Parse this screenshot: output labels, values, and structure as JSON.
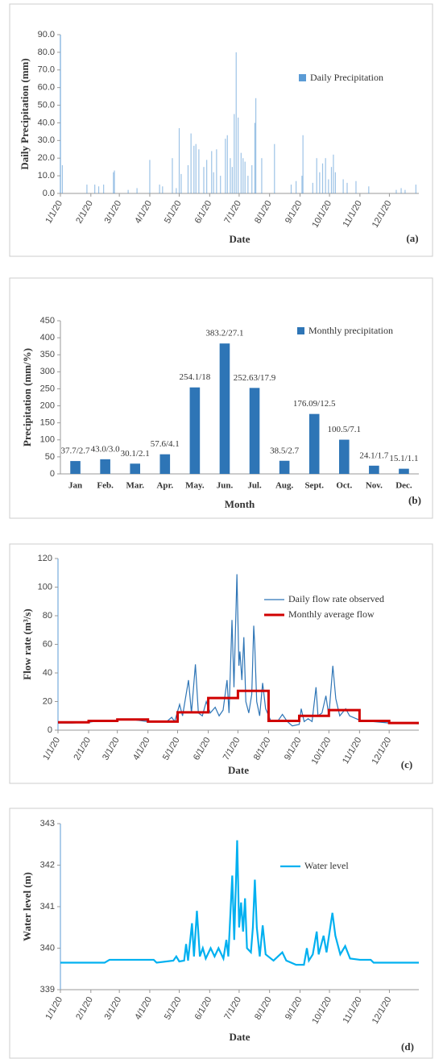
{
  "chart_data": [
    {
      "type": "bar",
      "ylabel": "Daily Precipitation (mm)",
      "xlabel": "Date",
      "panel_label": "(a)",
      "xlim": [
        "1/1/20",
        "12/31/20"
      ],
      "xticks": [
        "1/1/20",
        "2/1/20",
        "3/1/20",
        "4/1/20",
        "5/1/20",
        "6/1/20",
        "7/1/20",
        "8/1/20",
        "9/1/20",
        "10/1/20",
        "11/1/20",
        "12/1/20"
      ],
      "ylim": [
        0,
        90
      ],
      "yticks": [
        {
          "value": 0,
          "label": "0.0"
        },
        {
          "value": 10,
          "label": "10.0"
        },
        {
          "value": 20,
          "label": "20.0"
        },
        {
          "value": 30,
          "label": "30.0"
        },
        {
          "value": 40,
          "label": "40.0"
        },
        {
          "value": 50,
          "label": "50.0"
        },
        {
          "value": 60,
          "label": "60.0"
        },
        {
          "value": 70,
          "label": "70.0"
        },
        {
          "value": 80,
          "label": "80.0"
        },
        {
          "value": 90,
          "label": "90.0"
        }
      ],
      "series": [
        {
          "name": "Daily Precipitation",
          "color": "#5b9bd5",
          "x": [
            "1/3/20",
            "1/28/20",
            "2/5/20",
            "2/9/20",
            "2/14/20",
            "2/24/20",
            "2/25/20",
            "3/10/20",
            "3/19/20",
            "4/1/20",
            "4/11/20",
            "4/14/20",
            "4/24/20",
            "4/28/20",
            "5/1/20",
            "5/3/20",
            "5/10/20",
            "5/13/20",
            "5/16/20",
            "5/18/20",
            "5/21/20",
            "5/26/20",
            "5/29/20",
            "6/3/20",
            "6/5/20",
            "6/8/20",
            "6/12/20",
            "6/17/20",
            "6/19/20",
            "6/22/20",
            "6/24/20",
            "6/26/20",
            "6/28/20",
            "6/30/20",
            "7/3/20",
            "7/5/20",
            "7/7/20",
            "7/10/20",
            "7/14/20",
            "7/17/20",
            "7/18/20",
            "7/24/20",
            "8/6/20",
            "8/23/20",
            "8/28/20",
            "9/3/20",
            "9/4/20",
            "9/14/20",
            "9/18/20",
            "9/21/20",
            "9/24/20",
            "9/27/20",
            "9/30/20",
            "10/3/20",
            "10/5/20",
            "10/7/20",
            "10/15/20",
            "10/19/20",
            "10/28/20",
            "11/10/20",
            "12/8/20",
            "12/13/20",
            "12/17/20",
            "12/28/20"
          ],
          "values": [
            16,
            5,
            5,
            4,
            5,
            12,
            13,
            2,
            3,
            19,
            5,
            4,
            20,
            3,
            37,
            11,
            16,
            34,
            27,
            28,
            25,
            15,
            19,
            24,
            12,
            25,
            10,
            31,
            33,
            20,
            15,
            45,
            80,
            43,
            23,
            20,
            18,
            10,
            16,
            40,
            54,
            20,
            28,
            5,
            7,
            10,
            33,
            6,
            20,
            12,
            17,
            20,
            8,
            15,
            22,
            12,
            8,
            6,
            7,
            4,
            2,
            3,
            2,
            5
          ]
        }
      ]
    },
    {
      "type": "bar",
      "ylabel": "Precipitation (mm/%)",
      "xlabel": "Month",
      "panel_label": "(b)",
      "categories": [
        "Jan",
        "Feb.",
        "Mar.",
        "Apr.",
        "May.",
        "Jun.",
        "Jul.",
        "Aug.",
        "Sept.",
        "Oct.",
        "Nov.",
        "Dec."
      ],
      "ylim": [
        0,
        450
      ],
      "yticks": [
        0,
        50,
        100,
        150,
        200,
        250,
        300,
        350,
        400,
        450
      ],
      "series": [
        {
          "name": "Monthly precipitation",
          "color": "#2e75b6",
          "values": [
            37.7,
            43.0,
            30.1,
            57.6,
            254.1,
            383.2,
            252.63,
            38.5,
            176.09,
            100.5,
            24.1,
            15.1
          ],
          "value_labels": [
            "37.7/2.7",
            "43.0/3.0",
            "30.1/2.1",
            "57.6/4.1",
            "254.1/18",
            "383.2/27.1",
            "252.63/17.9",
            "38.5/2.7",
            "176.09/12.5",
            "100.5/7.1",
            "24.1/1.7",
            "15.1/1.1"
          ]
        }
      ]
    },
    {
      "type": "line",
      "ylabel": "Flow rate (m³/s)",
      "xlabel": "Date",
      "panel_label": "(c)",
      "xlim": [
        "1/1/20",
        "12/31/20"
      ],
      "xticks": [
        "1/1/20",
        "2/1/20",
        "3/1/20",
        "4/1/20",
        "5/1/20",
        "6/1/20",
        "7/1/20",
        "8/1/20",
        "9/1/20",
        "10/1/20",
        "11/1/20",
        "12/1/20"
      ],
      "ylim": [
        0,
        120
      ],
      "yticks": [
        0,
        20,
        40,
        60,
        80,
        100,
        120
      ],
      "series": [
        {
          "name": "Daily flow rate observed",
          "color": "#2e75b6",
          "width": 1.2,
          "x": [
            "1/1/20",
            "1/15/20",
            "2/1/20",
            "2/15/20",
            "3/1/20",
            "3/15/20",
            "4/1/20",
            "4/20/20",
            "4/25/20",
            "4/28/20",
            "5/3/20",
            "5/6/20",
            "5/12/20",
            "5/15/20",
            "5/19/20",
            "5/22/20",
            "5/26/20",
            "5/30/20",
            "6/3/20",
            "6/8/20",
            "6/12/20",
            "6/16/20",
            "6/20/20",
            "6/22/20",
            "6/25/20",
            "6/27/20",
            "6/30/20",
            "7/2/20",
            "7/3/20",
            "7/5/20",
            "7/7/20",
            "7/9/20",
            "7/12/20",
            "7/15/20",
            "7/17/20",
            "7/18/20",
            "7/20/20",
            "7/23/20",
            "7/26/20",
            "7/29/20",
            "8/3/20",
            "8/10/20",
            "8/15/20",
            "8/20/20",
            "8/25/20",
            "9/1/20",
            "9/3/20",
            "9/6/20",
            "9/10/20",
            "9/14/20",
            "9/18/20",
            "9/20/20",
            "9/24/20",
            "9/28/20",
            "10/1/20",
            "10/5/20",
            "10/8/20",
            "10/12/20",
            "10/18/20",
            "10/22/20",
            "11/1/20",
            "11/15/20",
            "12/1/20",
            "12/31/20"
          ],
          "values": [
            5,
            5,
            5.5,
            7,
            7,
            7.5,
            6,
            6,
            9,
            6,
            18,
            10,
            35,
            12,
            46,
            12,
            10,
            20,
            12,
            16,
            10,
            14,
            35,
            12,
            77,
            30,
            109,
            45,
            55,
            35,
            65,
            20,
            12,
            25,
            73,
            60,
            20,
            10,
            33,
            15,
            7,
            6,
            11,
            6,
            3,
            4,
            15,
            6,
            8,
            6,
            30,
            10,
            12,
            24,
            10,
            45,
            22,
            10,
            15,
            10,
            7,
            6,
            5,
            4.5
          ]
        },
        {
          "name": "Monthly average  flow",
          "color": "#d00000",
          "width": 3,
          "drawstyle": "steps-post",
          "x": [
            "1/1/20",
            "2/1/20",
            "3/1/20",
            "4/1/20",
            "5/1/20",
            "6/1/20",
            "7/1/20",
            "8/1/20",
            "9/1/20",
            "10/1/20",
            "11/1/20",
            "12/1/20"
          ],
          "values": [
            5.5,
            6.5,
            7.5,
            6,
            12.5,
            22.5,
            27.5,
            6.5,
            10,
            14,
            6.5,
            5
          ]
        }
      ]
    },
    {
      "type": "line",
      "ylabel": "Water level (m)",
      "xlabel": "Date",
      "panel_label": "(d)",
      "xlim": [
        "1/1/20",
        "12/31/20"
      ],
      "xticks": [
        "1/1/20",
        "2/1/20",
        "3/1/20",
        "4/1/20",
        "5/1/20",
        "6/1/20",
        "7/1/20",
        "8/1/20",
        "9/1/20",
        "10/1/20",
        "11/1/20",
        "12/1/20"
      ],
      "ylim": [
        339,
        343
      ],
      "yticks": [
        339,
        340,
        341,
        342,
        343
      ],
      "series": [
        {
          "name": "Water level",
          "color": "#00b0f0",
          "width": 2.2,
          "x": [
            "1/1/20",
            "2/15/20",
            "2/20/20",
            "4/5/20",
            "4/8/20",
            "4/25/20",
            "4/28/20",
            "5/1/20",
            "5/6/20",
            "5/8/20",
            "5/10/20",
            "5/14/20",
            "5/16/20",
            "5/19/20",
            "5/22/20",
            "5/25/20",
            "5/28/20",
            "6/2/20",
            "6/6/20",
            "6/10/20",
            "6/15/20",
            "6/18/20",
            "6/20/20",
            "6/24/20",
            "6/26/20",
            "6/29/20",
            "7/1/20",
            "7/3/20",
            "7/5/20",
            "7/7/20",
            "7/9/20",
            "7/13/20",
            "7/15/20",
            "7/17/20",
            "7/19/20",
            "7/22/20",
            "7/25/20",
            "7/28/20",
            "8/5/20",
            "8/14/20",
            "8/18/20",
            "8/28/20",
            "9/5/20",
            "9/8/20",
            "9/10/20",
            "9/14/20",
            "9/18/20",
            "9/20/20",
            "9/25/20",
            "9/28/20",
            "10/4/20",
            "10/7/20",
            "10/12/20",
            "10/17/20",
            "10/22/20",
            "11/1/20",
            "11/12/20",
            "11/15/20",
            "12/31/20"
          ],
          "values": [
            339.65,
            339.65,
            339.72,
            339.72,
            339.65,
            339.7,
            339.8,
            339.68,
            339.7,
            340.1,
            339.7,
            340.6,
            339.8,
            340.9,
            339.8,
            340.0,
            339.75,
            340.0,
            339.8,
            340.0,
            339.75,
            340.2,
            339.8,
            341.75,
            340.2,
            342.6,
            340.5,
            341.1,
            340.4,
            341.2,
            340.0,
            339.9,
            340.5,
            341.65,
            340.5,
            339.8,
            340.55,
            339.85,
            339.7,
            339.9,
            339.7,
            339.6,
            339.6,
            340.0,
            339.7,
            339.85,
            340.4,
            339.85,
            340.3,
            339.9,
            340.85,
            340.3,
            339.85,
            340.05,
            339.75,
            339.72,
            339.72,
            339.65,
            339.65
          ]
        }
      ]
    }
  ]
}
